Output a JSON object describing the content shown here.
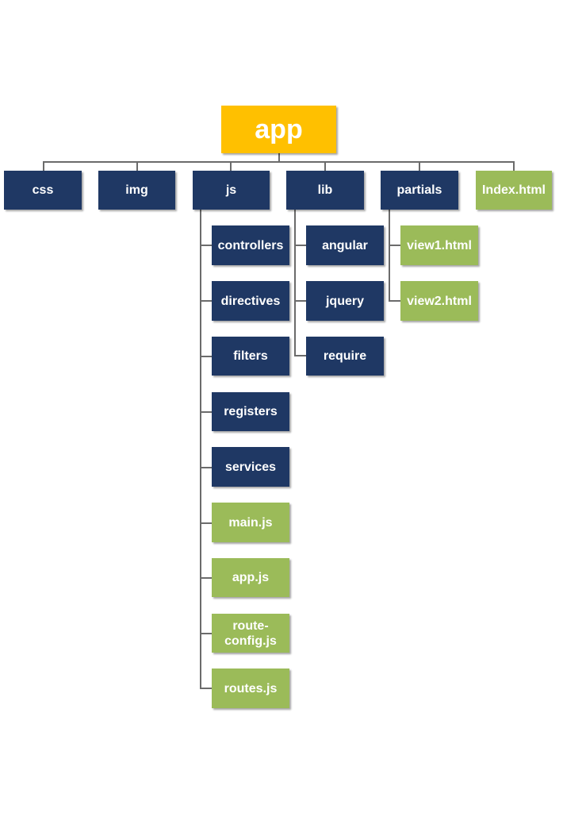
{
  "colors": {
    "root": "#ffc000",
    "folder": "#1f3864",
    "file": "#9bbb59",
    "connector": "#6b6b6b"
  },
  "root": {
    "label": "app"
  },
  "top_level": {
    "css": "css",
    "img": "img",
    "js": "js",
    "lib": "lib",
    "partials": "partials",
    "index": "Index.html"
  },
  "js_children": {
    "controllers": "controllers",
    "directives": "directives",
    "filters": "filters",
    "registers": "registers",
    "services": "services",
    "main": "main.js",
    "app": "app.js",
    "route_config": "route-\nconfig.js",
    "routes": "routes.js"
  },
  "lib_children": {
    "angular": "angular",
    "jquery": "jquery",
    "require": "require"
  },
  "partials_children": {
    "view1": "view1.html",
    "view2": "view2.html"
  }
}
